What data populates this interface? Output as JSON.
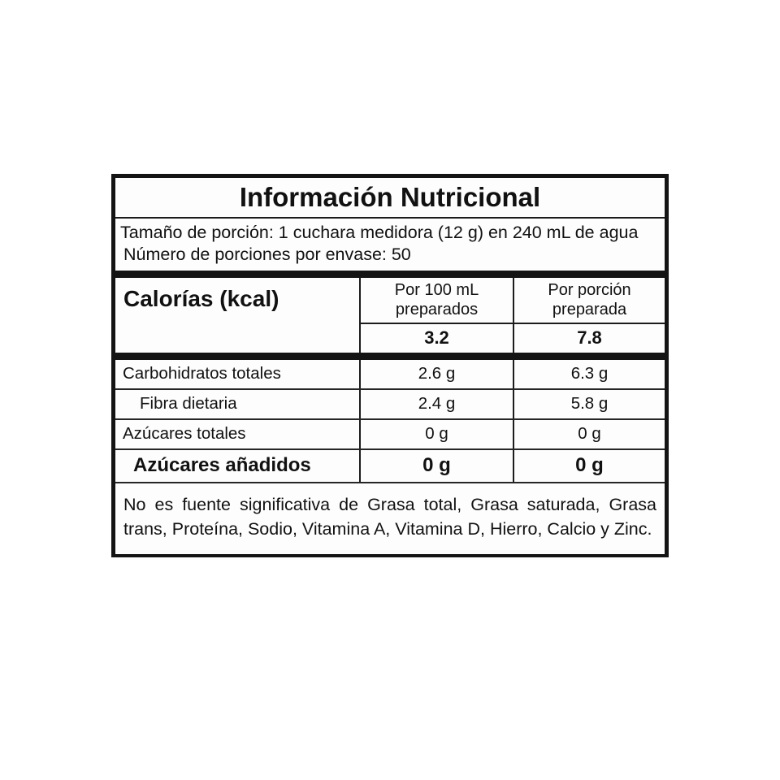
{
  "label": {
    "title": "Información Nutricional",
    "serving": {
      "line1": "Tamaño de porción: 1 cuchara medidora (12 g) en 240 mL de agua",
      "line2": "Número de porciones por envase: 50"
    },
    "calories": {
      "name": "Calorías (kcal)",
      "columns": [
        {
          "header": "Por 100 mL\npreparados",
          "value": "3.2"
        },
        {
          "header": "Por porción\npreparada",
          "value": "7.8"
        }
      ]
    },
    "nutrients": [
      {
        "name": "Carbohidratos totales",
        "per_100ml": "2.6 g",
        "per_portion": "6.3 g"
      },
      {
        "name": "Fibra dietaria",
        "per_100ml": "2.4 g",
        "per_portion": "5.8 g"
      },
      {
        "name": "Azúcares totales",
        "per_100ml": "0 g",
        "per_portion": "0 g"
      },
      {
        "name": "Azúcares añadidos",
        "per_100ml": "0 g",
        "per_portion": "0 g"
      }
    ],
    "footnote": "No es fuente significativa de Grasa total, Grasa saturada, Grasa trans, Proteína, Sodio, Vitamina A, Vitamina D, Hierro, Calcio y Zinc.",
    "colors": {
      "border": "#141414",
      "label_background": "#fdfdfd",
      "text": "#111111"
    }
  }
}
